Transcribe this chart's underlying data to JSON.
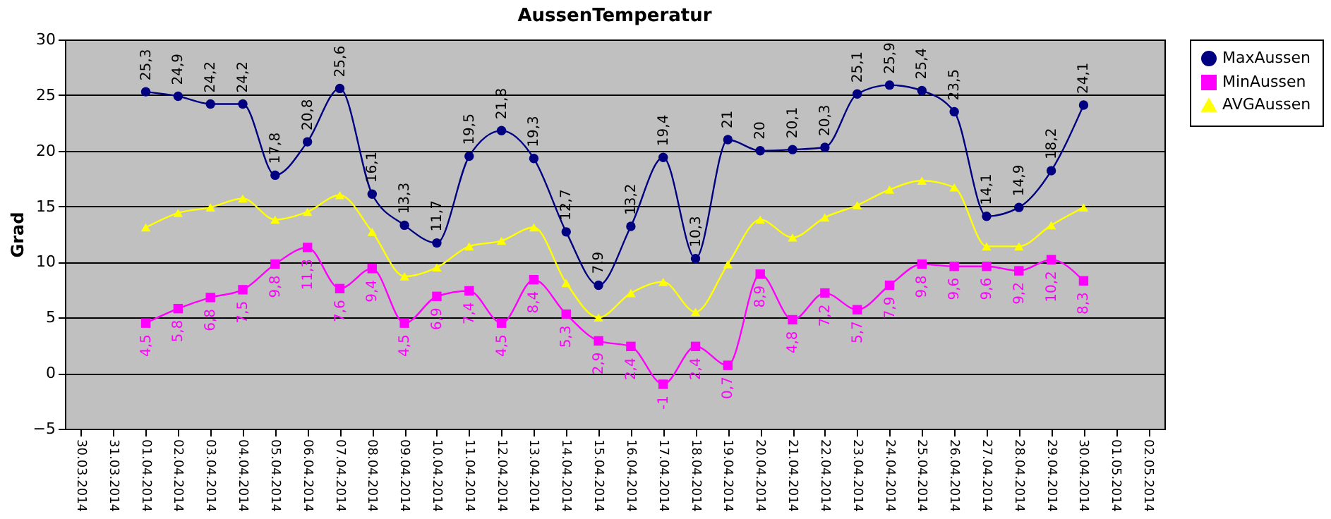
{
  "chart_data": {
    "type": "line",
    "title": "AussenTemperatur",
    "ylabel": "Grad",
    "categories": [
      "30.03.2014",
      "31.03.2014",
      "01.04.2014",
      "02.04.2014",
      "03.04.2014",
      "04.04.2014",
      "05.04.2014",
      "06.04.2014",
      "07.04.2014",
      "08.04.2014",
      "09.04.2014",
      "10.04.2014",
      "11.04.2014",
      "12.04.2014",
      "13.04.2014",
      "14.04.2014",
      "15.04.2014",
      "16.04.2014",
      "17.04.2014",
      "18.04.2014",
      "19.04.2014",
      "20.04.2014",
      "21.04.2014",
      "22.04.2014",
      "23.04.2014",
      "24.04.2014",
      "25.04.2014",
      "26.04.2014",
      "27.04.2014",
      "28.04.2014",
      "29.04.2014",
      "30.04.2014",
      "01.05.2014",
      "02.05.2014"
    ],
    "series": [
      {
        "name": "MaxAussen",
        "color": "#000080",
        "marker": "circle",
        "values": [
          null,
          null,
          25.3,
          24.9,
          24.2,
          24.2,
          17.8,
          20.8,
          25.6,
          16.1,
          13.3,
          11.7,
          19.5,
          21.8,
          19.3,
          12.7,
          7.9,
          13.2,
          19.4,
          10.3,
          21,
          20,
          20.1,
          20.3,
          25.1,
          25.9,
          25.4,
          23.5,
          14.1,
          14.9,
          18.2,
          24.1,
          null,
          null
        ],
        "value_labels": [
          null,
          null,
          "25,3",
          "24,9",
          "24,2",
          "24,2",
          "17,8",
          "20,8",
          "25,6",
          "16,1",
          "13,3",
          "11,7",
          "19,5",
          "21,8",
          "19,3",
          "12,7",
          "7,9",
          "13,2",
          "19,4",
          "10,3",
          "21",
          "20",
          "20,1",
          "20,3",
          "25,1",
          "25,9",
          "25,4",
          "23,5",
          "14,1",
          "14,9",
          "18,2",
          "24,1",
          null,
          null
        ]
      },
      {
        "name": "MinAussen",
        "color": "#ff00ff",
        "marker": "square",
        "values": [
          null,
          null,
          4.5,
          5.8,
          6.8,
          7.5,
          9.8,
          11.3,
          7.6,
          9.4,
          4.5,
          6.9,
          7.4,
          4.5,
          8.4,
          5.3,
          2.9,
          2.4,
          -1,
          2.4,
          0.7,
          8.9,
          4.8,
          7.2,
          5.7,
          7.9,
          9.8,
          9.6,
          9.6,
          9.2,
          10.2,
          8.3,
          null,
          null
        ],
        "value_labels": [
          null,
          null,
          "4,5",
          "5,8",
          "6,8",
          "7,5",
          "9,8",
          "11,3",
          "7,6",
          "9,4",
          "4,5",
          "6,9",
          "7,4",
          "4,5",
          "8,4",
          "5,3",
          "2,9",
          "2,4",
          "-1",
          "2,4",
          "0,7",
          "8,9",
          "4,8",
          "7,2",
          "5,7",
          "7,9",
          "9,8",
          "9,6",
          "9,6",
          "9,2",
          "10,2",
          "8,3",
          null,
          null
        ]
      },
      {
        "name": "AVGAussen",
        "color": "#ffff00",
        "marker": "triangle",
        "values": [
          null,
          null,
          13.1,
          14.4,
          14.9,
          15.7,
          13.8,
          14.5,
          16.0,
          12.7,
          8.7,
          9.5,
          11.4,
          11.9,
          13.1,
          8.1,
          5.0,
          7.2,
          8.2,
          5.5,
          9.8,
          13.8,
          12.2,
          14.0,
          15.1,
          16.5,
          17.3,
          16.7,
          11.4,
          11.4,
          13.3,
          14.9,
          null,
          null
        ]
      }
    ],
    "ylim": [
      -5,
      30
    ],
    "yticks": [
      -5,
      0,
      5,
      10,
      15,
      20,
      25,
      30
    ],
    "grid": "y",
    "legend": "right",
    "line_style": "solid"
  }
}
